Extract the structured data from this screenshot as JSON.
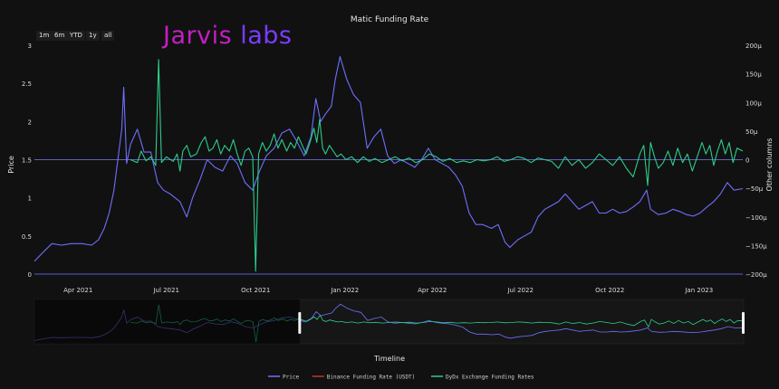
{
  "range_buttons": [
    "1m",
    "6m",
    "YTD",
    "1y",
    "all"
  ],
  "logo": {
    "part1": "Jarvis",
    "part2": "labs"
  },
  "chart_data": {
    "type": "line",
    "title": "Matic Funding Rate",
    "xlabel": "Timeline",
    "ylabel": "Price",
    "y2label": "Other columns",
    "ylim": [
      0,
      3
    ],
    "y2lim": [
      -200,
      200
    ],
    "y2unit": "μ",
    "xlim": [
      "2021-02-15",
      "2023-02-15"
    ],
    "yticks": [
      "0",
      "0.5",
      "1",
      "1.5",
      "2",
      "2.5",
      "3"
    ],
    "y2ticks": [
      "−200μ",
      "−150μ",
      "−100μ",
      "−50μ",
      "0",
      "50μ",
      "100μ",
      "150μ",
      "200μ"
    ],
    "xticks": [
      {
        "date": "2021-04-01",
        "label": "Apr 2021"
      },
      {
        "date": "2021-07-01",
        "label": "Jul 2021"
      },
      {
        "date": "2021-10-01",
        "label": "Oct 2021"
      },
      {
        "date": "2022-01-01",
        "label": "Jan 2022"
      },
      {
        "date": "2022-04-01",
        "label": "Apr 2022"
      },
      {
        "date": "2022-07-01",
        "label": "Jul 2022"
      },
      {
        "date": "2022-10-01",
        "label": "Oct 2022"
      },
      {
        "date": "2023-01-01",
        "label": "Jan 2023"
      }
    ],
    "grid": false,
    "legend_position": "bottom",
    "series": [
      {
        "name": "Price",
        "axis": "left",
        "color": "#6f6fff",
        "points": [
          [
            "2021-02-15",
            0.17
          ],
          [
            "2021-02-25",
            0.3
          ],
          [
            "2021-03-05",
            0.4
          ],
          [
            "2021-03-15",
            0.38
          ],
          [
            "2021-03-25",
            0.4
          ],
          [
            "2021-04-05",
            0.4
          ],
          [
            "2021-04-15",
            0.38
          ],
          [
            "2021-04-22",
            0.45
          ],
          [
            "2021-04-28",
            0.6
          ],
          [
            "2021-05-03",
            0.8
          ],
          [
            "2021-05-08",
            1.1
          ],
          [
            "2021-05-12",
            1.5
          ],
          [
            "2021-05-16",
            1.9
          ],
          [
            "2021-05-18",
            2.45
          ],
          [
            "2021-05-21",
            1.45
          ],
          [
            "2021-05-25",
            1.7
          ],
          [
            "2021-06-01",
            1.9
          ],
          [
            "2021-06-08",
            1.6
          ],
          [
            "2021-06-15",
            1.6
          ],
          [
            "2021-06-22",
            1.2
          ],
          [
            "2021-06-28",
            1.1
          ],
          [
            "2021-07-05",
            1.05
          ],
          [
            "2021-07-15",
            0.95
          ],
          [
            "2021-07-22",
            0.75
          ],
          [
            "2021-07-28",
            1.0
          ],
          [
            "2021-08-05",
            1.25
          ],
          [
            "2021-08-12",
            1.5
          ],
          [
            "2021-08-20",
            1.4
          ],
          [
            "2021-08-28",
            1.35
          ],
          [
            "2021-09-05",
            1.55
          ],
          [
            "2021-09-12",
            1.45
          ],
          [
            "2021-09-20",
            1.2
          ],
          [
            "2021-09-28",
            1.1
          ],
          [
            "2021-10-05",
            1.35
          ],
          [
            "2021-10-12",
            1.55
          ],
          [
            "2021-10-20",
            1.65
          ],
          [
            "2021-10-28",
            1.85
          ],
          [
            "2021-11-05",
            1.9
          ],
          [
            "2021-11-12",
            1.75
          ],
          [
            "2021-11-20",
            1.55
          ],
          [
            "2021-11-27",
            1.8
          ],
          [
            "2021-12-02",
            2.3
          ],
          [
            "2021-12-07",
            2.0
          ],
          [
            "2021-12-12",
            2.1
          ],
          [
            "2021-12-18",
            2.2
          ],
          [
            "2021-12-22",
            2.55
          ],
          [
            "2021-12-27",
            2.85
          ],
          [
            "2022-01-03",
            2.55
          ],
          [
            "2022-01-10",
            2.35
          ],
          [
            "2022-01-17",
            2.25
          ],
          [
            "2022-01-24",
            1.65
          ],
          [
            "2022-01-31",
            1.8
          ],
          [
            "2022-02-07",
            1.9
          ],
          [
            "2022-02-14",
            1.55
          ],
          [
            "2022-02-21",
            1.45
          ],
          [
            "2022-02-28",
            1.5
          ],
          [
            "2022-03-07",
            1.45
          ],
          [
            "2022-03-14",
            1.4
          ],
          [
            "2022-03-21",
            1.5
          ],
          [
            "2022-03-28",
            1.65
          ],
          [
            "2022-04-04",
            1.5
          ],
          [
            "2022-04-11",
            1.45
          ],
          [
            "2022-04-18",
            1.4
          ],
          [
            "2022-04-25",
            1.3
          ],
          [
            "2022-05-02",
            1.15
          ],
          [
            "2022-05-09",
            0.8
          ],
          [
            "2022-05-16",
            0.65
          ],
          [
            "2022-05-23",
            0.65
          ],
          [
            "2022-06-01",
            0.6
          ],
          [
            "2022-06-08",
            0.65
          ],
          [
            "2022-06-15",
            0.42
          ],
          [
            "2022-06-20",
            0.35
          ],
          [
            "2022-06-28",
            0.45
          ],
          [
            "2022-07-05",
            0.5
          ],
          [
            "2022-07-12",
            0.55
          ],
          [
            "2022-07-19",
            0.75
          ],
          [
            "2022-07-26",
            0.85
          ],
          [
            "2022-08-02",
            0.9
          ],
          [
            "2022-08-09",
            0.95
          ],
          [
            "2022-08-16",
            1.05
          ],
          [
            "2022-08-23",
            0.95
          ],
          [
            "2022-08-30",
            0.85
          ],
          [
            "2022-09-06",
            0.9
          ],
          [
            "2022-09-13",
            0.95
          ],
          [
            "2022-09-20",
            0.8
          ],
          [
            "2022-09-27",
            0.8
          ],
          [
            "2022-10-04",
            0.85
          ],
          [
            "2022-10-11",
            0.8
          ],
          [
            "2022-10-18",
            0.82
          ],
          [
            "2022-10-25",
            0.88
          ],
          [
            "2022-11-01",
            0.95
          ],
          [
            "2022-11-08",
            1.1
          ],
          [
            "2022-11-12",
            0.85
          ],
          [
            "2022-11-20",
            0.78
          ],
          [
            "2022-11-28",
            0.8
          ],
          [
            "2022-12-05",
            0.85
          ],
          [
            "2022-12-12",
            0.82
          ],
          [
            "2022-12-19",
            0.78
          ],
          [
            "2022-12-26",
            0.76
          ],
          [
            "2023-01-02",
            0.8
          ],
          [
            "2023-01-09",
            0.88
          ],
          [
            "2023-01-16",
            0.95
          ],
          [
            "2023-01-23",
            1.05
          ],
          [
            "2023-01-30",
            1.2
          ],
          [
            "2023-02-06",
            1.1
          ],
          [
            "2023-02-15",
            1.12
          ]
        ]
      },
      {
        "name": "Binance Funding Rate (USDT)",
        "axis": "right",
        "color": "#c0392b",
        "points": []
      },
      {
        "name": "DyDx Exchange Funding Rates",
        "axis": "right",
        "color": "#2ecc8a",
        "points": [
          [
            "2021-05-25",
            0
          ],
          [
            "2021-06-01",
            -5
          ],
          [
            "2021-06-05",
            15
          ],
          [
            "2021-06-10",
            -2
          ],
          [
            "2021-06-15",
            5
          ],
          [
            "2021-06-20",
            -10
          ],
          [
            "2021-06-23",
            175
          ],
          [
            "2021-06-26",
            -5
          ],
          [
            "2021-07-01",
            5
          ],
          [
            "2021-07-08",
            -3
          ],
          [
            "2021-07-12",
            10
          ],
          [
            "2021-07-15",
            -20
          ],
          [
            "2021-07-18",
            15
          ],
          [
            "2021-07-22",
            25
          ],
          [
            "2021-07-26",
            5
          ],
          [
            "2021-08-01",
            10
          ],
          [
            "2021-08-06",
            30
          ],
          [
            "2021-08-10",
            40
          ],
          [
            "2021-08-14",
            15
          ],
          [
            "2021-08-18",
            20
          ],
          [
            "2021-08-22",
            35
          ],
          [
            "2021-08-26",
            10
          ],
          [
            "2021-08-30",
            25
          ],
          [
            "2021-09-04",
            15
          ],
          [
            "2021-09-08",
            35
          ],
          [
            "2021-09-12",
            10
          ],
          [
            "2021-09-16",
            -10
          ],
          [
            "2021-09-20",
            15
          ],
          [
            "2021-09-24",
            20
          ],
          [
            "2021-09-28",
            5
          ],
          [
            "2021-10-01",
            -195
          ],
          [
            "2021-10-04",
            10
          ],
          [
            "2021-10-08",
            30
          ],
          [
            "2021-10-12",
            15
          ],
          [
            "2021-10-16",
            25
          ],
          [
            "2021-10-20",
            45
          ],
          [
            "2021-10-24",
            20
          ],
          [
            "2021-10-28",
            35
          ],
          [
            "2021-11-02",
            15
          ],
          [
            "2021-11-06",
            30
          ],
          [
            "2021-11-10",
            20
          ],
          [
            "2021-11-14",
            40
          ],
          [
            "2021-11-18",
            25
          ],
          [
            "2021-11-22",
            10
          ],
          [
            "2021-11-26",
            30
          ],
          [
            "2021-11-30",
            55
          ],
          [
            "2021-12-03",
            30
          ],
          [
            "2021-12-06",
            70
          ],
          [
            "2021-12-09",
            20
          ],
          [
            "2021-12-12",
            10
          ],
          [
            "2021-12-16",
            25
          ],
          [
            "2021-12-20",
            15
          ],
          [
            "2021-12-24",
            5
          ],
          [
            "2021-12-28",
            10
          ],
          [
            "2022-01-02",
            0
          ],
          [
            "2022-01-08",
            5
          ],
          [
            "2022-01-14",
            -5
          ],
          [
            "2022-01-20",
            5
          ],
          [
            "2022-01-26",
            -3
          ],
          [
            "2022-02-01",
            2
          ],
          [
            "2022-02-08",
            -5
          ],
          [
            "2022-02-15",
            0
          ],
          [
            "2022-02-22",
            5
          ],
          [
            "2022-03-01",
            -2
          ],
          [
            "2022-03-08",
            3
          ],
          [
            "2022-03-15",
            -5
          ],
          [
            "2022-03-22",
            0
          ],
          [
            "2022-03-29",
            10
          ],
          [
            "2022-04-05",
            5
          ],
          [
            "2022-04-12",
            -3
          ],
          [
            "2022-04-19",
            2
          ],
          [
            "2022-04-26",
            -5
          ],
          [
            "2022-05-03",
            -2
          ],
          [
            "2022-05-10",
            -5
          ],
          [
            "2022-05-17",
            0
          ],
          [
            "2022-05-24",
            -2
          ],
          [
            "2022-05-31",
            0
          ],
          [
            "2022-06-07",
            5
          ],
          [
            "2022-06-14",
            -3
          ],
          [
            "2022-06-21",
            0
          ],
          [
            "2022-06-28",
            5
          ],
          [
            "2022-07-05",
            2
          ],
          [
            "2022-07-12",
            -5
          ],
          [
            "2022-07-19",
            3
          ],
          [
            "2022-07-26",
            0
          ],
          [
            "2022-08-02",
            -3
          ],
          [
            "2022-08-09",
            -15
          ],
          [
            "2022-08-16",
            5
          ],
          [
            "2022-08-23",
            -10
          ],
          [
            "2022-08-30",
            0
          ],
          [
            "2022-09-06",
            -15
          ],
          [
            "2022-09-13",
            -5
          ],
          [
            "2022-09-20",
            10
          ],
          [
            "2022-09-27",
            0
          ],
          [
            "2022-10-04",
            -10
          ],
          [
            "2022-10-11",
            5
          ],
          [
            "2022-10-18",
            -15
          ],
          [
            "2022-10-25",
            -30
          ],
          [
            "2022-11-01",
            10
          ],
          [
            "2022-11-05",
            25
          ],
          [
            "2022-11-09",
            -45
          ],
          [
            "2022-11-12",
            30
          ],
          [
            "2022-11-16",
            5
          ],
          [
            "2022-11-20",
            -15
          ],
          [
            "2022-11-25",
            -5
          ],
          [
            "2022-11-30",
            15
          ],
          [
            "2022-12-05",
            -10
          ],
          [
            "2022-12-10",
            20
          ],
          [
            "2022-12-15",
            -5
          ],
          [
            "2022-12-20",
            10
          ],
          [
            "2022-12-25",
            -20
          ],
          [
            "2022-12-30",
            5
          ],
          [
            "2023-01-04",
            30
          ],
          [
            "2023-01-08",
            10
          ],
          [
            "2023-01-12",
            25
          ],
          [
            "2023-01-16",
            -10
          ],
          [
            "2023-01-20",
            15
          ],
          [
            "2023-01-24",
            35
          ],
          [
            "2023-01-28",
            10
          ],
          [
            "2023-02-01",
            30
          ],
          [
            "2023-02-05",
            -5
          ],
          [
            "2023-02-09",
            20
          ],
          [
            "2023-02-15",
            15
          ]
        ]
      }
    ]
  }
}
